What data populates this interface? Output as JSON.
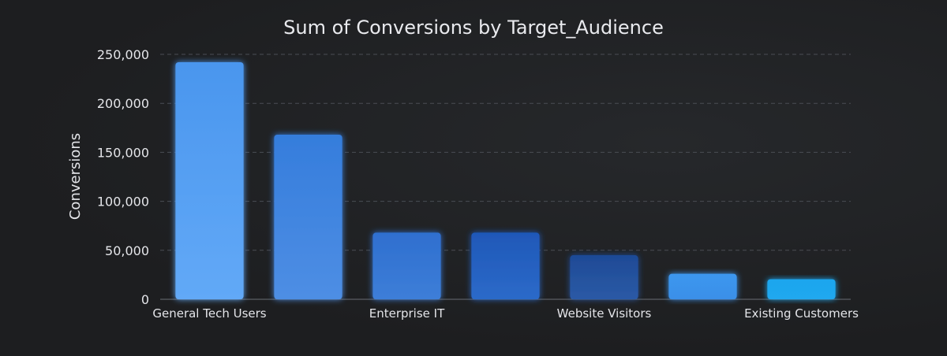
{
  "chart_data": {
    "type": "bar",
    "title": "Sum of Conversions by Target_Audience",
    "xlabel": "",
    "ylabel": "Conversions",
    "ylim": [
      0,
      250000
    ],
    "yticks": [
      0,
      50000,
      100000,
      150000,
      200000,
      250000
    ],
    "ytick_labels": [
      "0",
      "50,000",
      "100,000",
      "150,000",
      "200,000",
      "250,000"
    ],
    "grid": true,
    "categories": [
      "General Tech Users",
      "",
      "Enterprise IT",
      "",
      "Website Visitors",
      "",
      "Existing Customers"
    ],
    "values": [
      242000,
      168000,
      68000,
      68000,
      45000,
      26000,
      20500
    ],
    "bar_colors_top": [
      "#4a96ee",
      "#357ddc",
      "#2f6fcf",
      "#1f58b8",
      "#1e4a96",
      "#3c97ef",
      "#1ea6ee"
    ],
    "bar_colors_bottom": [
      "#62a9f7",
      "#4e8ee4",
      "#3d7ed8",
      "#2c6ac9",
      "#2b5aa6",
      "#3a8fe8",
      "#20a8ef"
    ]
  }
}
